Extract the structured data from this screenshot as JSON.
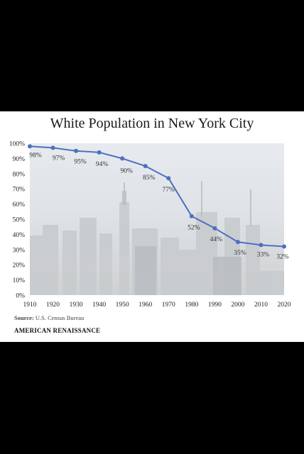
{
  "chart_data": {
    "type": "line",
    "title": "White Population in New York City",
    "xlabel": "",
    "ylabel": "",
    "x": [
      1910,
      1920,
      1930,
      1940,
      1950,
      1960,
      1970,
      1980,
      1990,
      2000,
      2010,
      2020
    ],
    "series": [
      {
        "values": [
          98,
          97,
          95,
          94,
          90,
          85,
          77,
          52,
          44,
          35,
          33,
          32
        ],
        "labels": [
          "98%",
          "97%",
          "95%",
          "94%",
          "90%",
          "85%",
          "77%",
          "52%",
          "44%",
          "35%",
          "33%",
          "32%"
        ]
      }
    ],
    "ylim": [
      0,
      100
    ],
    "yticks": [
      "0%",
      "10%",
      "20%",
      "30%",
      "40%",
      "50%",
      "60%",
      "70%",
      "80%",
      "90%",
      "100%"
    ],
    "xticks": [
      "1910",
      "1920",
      "1930",
      "1940",
      "1950",
      "1960",
      "1970",
      "1980",
      "1990",
      "2000",
      "2010",
      "2020"
    ],
    "grid": false,
    "line_color": "#4f6fbf",
    "background": "faded photo of the New York City skyline"
  },
  "footer": {
    "source_label": "Source:",
    "source_text": "U.S. Census Bureau",
    "brand": "AMERICAN RENAISSANCE"
  }
}
